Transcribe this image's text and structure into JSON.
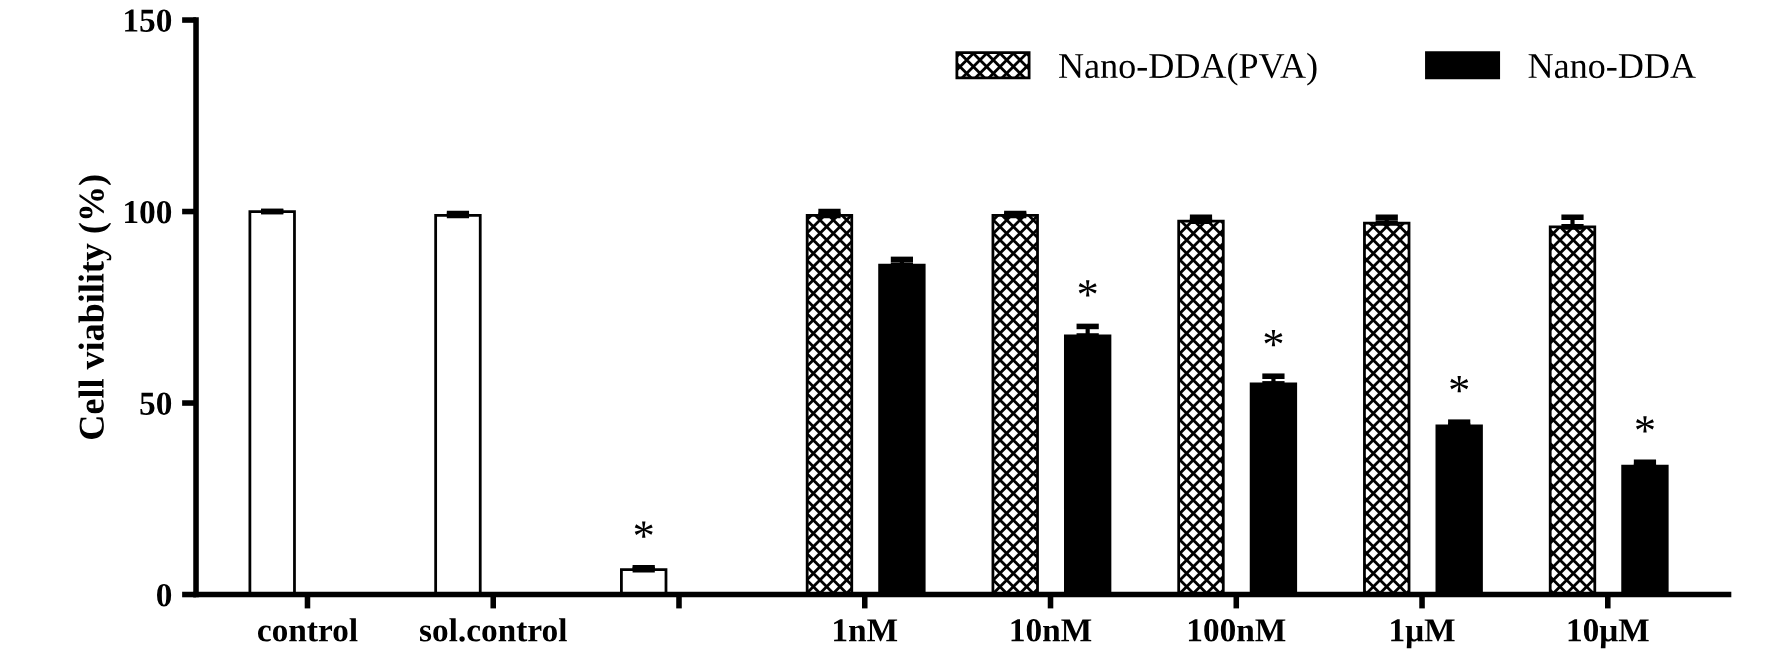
{
  "chart_data": {
    "type": "bar",
    "ylabel": "Cell viability (%)",
    "categories": [
      "control",
      "sol.control",
      null,
      "1nM",
      "10nM",
      "100nM",
      "1μM",
      "10μM"
    ],
    "series": [
      {
        "color": "#ffffff",
        "values": [
          100,
          99,
          6.5,
          null,
          null,
          null,
          null,
          null
        ],
        "errors": [
          null,
          0.5,
          0.5,
          null,
          null,
          null,
          null,
          null
        ],
        "value_labels": [
          null,
          null,
          "*",
          null,
          null,
          null,
          null,
          null
        ]
      },
      {
        "name": "Nano-DDA(PVA)",
        "color": "#000000",
        "values": [
          null,
          null,
          null,
          99,
          99,
          97.5,
          97,
          96
        ],
        "errors": [
          null,
          null,
          null,
          1,
          0.5,
          1,
          1.5,
          2.5
        ],
        "value_labels": [
          null,
          null,
          null,
          null,
          null,
          null,
          null,
          null
        ]
      },
      {
        "name": "Nano-DDA",
        "color": "#000000",
        "values": [
          null,
          null,
          null,
          86,
          67.5,
          55,
          44,
          33.5
        ],
        "errors": [
          null,
          null,
          null,
          1.5,
          2.5,
          2,
          1,
          1
        ],
        "value_labels": [
          null,
          null,
          null,
          null,
          "*",
          "*",
          "*",
          "*"
        ]
      }
    ],
    "ylim": [
      0,
      150
    ],
    "yticks": [
      0,
      50,
      100,
      150
    ],
    "grid": false,
    "legend": "top right"
  }
}
